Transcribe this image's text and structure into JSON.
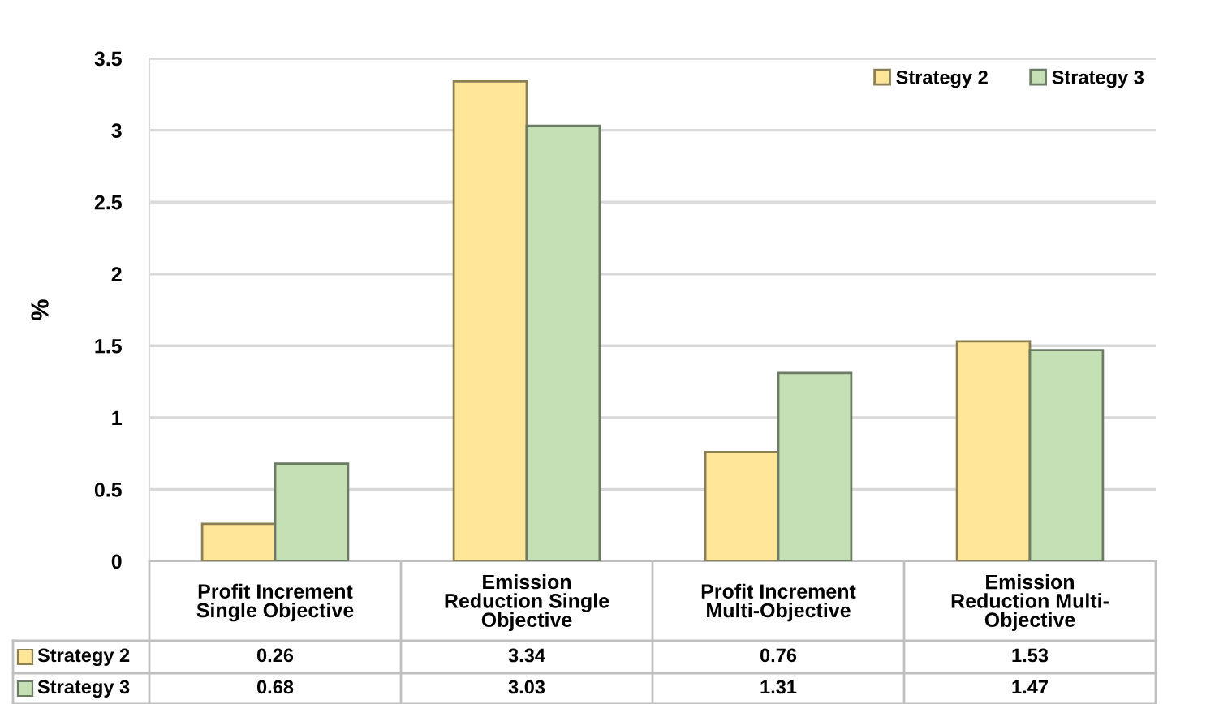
{
  "chart_data": {
    "type": "bar",
    "ylabel": "%",
    "categories": [
      "Profit Increment Single Objective",
      "Emission Reduction Single Objective",
      "Profit Increment Multi-Objective",
      "Emission Reduction Multi-Objective"
    ],
    "series": [
      {
        "name": "Strategy 2",
        "color": "#ffe699",
        "values": [
          0.26,
          3.34,
          0.76,
          1.53
        ]
      },
      {
        "name": "Strategy 3",
        "color": "#c5e0b4",
        "values": [
          0.68,
          3.03,
          1.31,
          1.47
        ]
      }
    ],
    "ylim": [
      0,
      3.5
    ],
    "yticks": [
      0,
      0.5,
      1,
      1.5,
      2,
      2.5,
      3,
      3.5
    ],
    "grid": "y",
    "legend": "top right",
    "data_labels": true
  }
}
